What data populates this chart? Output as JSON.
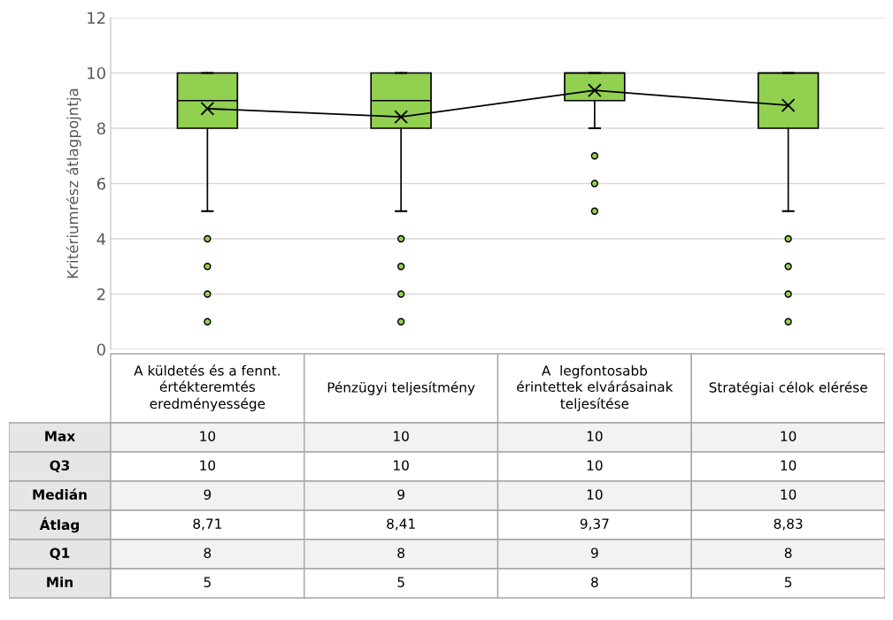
{
  "chart_data": {
    "type": "box",
    "ylabel": "Kritériumrész átlagpojntja",
    "categories": [
      "A küldetés és a fennt.\nértékteremtés\neredményessége",
      "Pénzügyi teljesítmény",
      "A  legfontosabb\nérintettek elvárásainak\nteljesítése",
      "Stratégiai célok elérése"
    ],
    "boxes": [
      {
        "low": 5,
        "q1": 8,
        "median": 9,
        "q3": 10,
        "high": 10,
        "mean": 8.71,
        "outliers": [
          1,
          2,
          3,
          4
        ]
      },
      {
        "low": 5,
        "q1": 8,
        "median": 9,
        "q3": 10,
        "high": 10,
        "mean": 8.41,
        "outliers": [
          1,
          2,
          3,
          4
        ]
      },
      {
        "low": 8,
        "q1": 9,
        "median": 10,
        "q3": 10,
        "high": 10,
        "mean": 9.37,
        "outliers": [
          5,
          6,
          7
        ]
      },
      {
        "low": 5,
        "q1": 8,
        "median": 10,
        "q3": 10,
        "high": 10,
        "mean": 8.83,
        "outliers": [
          1,
          2,
          3,
          4
        ]
      }
    ],
    "color": "#92d050",
    "series": [
      {
        "type": "line",
        "color": "#000000",
        "values": [
          8.71,
          8.41,
          9.37,
          8.83
        ],
        "marker": "none"
      }
    ],
    "ylim": [
      0,
      12
    ],
    "yticks": [
      0,
      2,
      4,
      6,
      8,
      10,
      12
    ],
    "grid": "y",
    "legend": false,
    "annotations": [
      "Max",
      "Q3",
      "Medián",
      "Átlag",
      "Q1",
      "Min"
    ],
    "value_labels": [
      [
        "10",
        "10",
        "9",
        "8,71",
        "8",
        "5"
      ],
      [
        "10",
        "10",
        "9",
        "8,41",
        "8",
        "5"
      ],
      [
        "10",
        "10",
        "10",
        "9,37",
        "9",
        "8"
      ],
      [
        "10",
        "10",
        "10",
        "8,83",
        "8",
        "5"
      ]
    ]
  }
}
